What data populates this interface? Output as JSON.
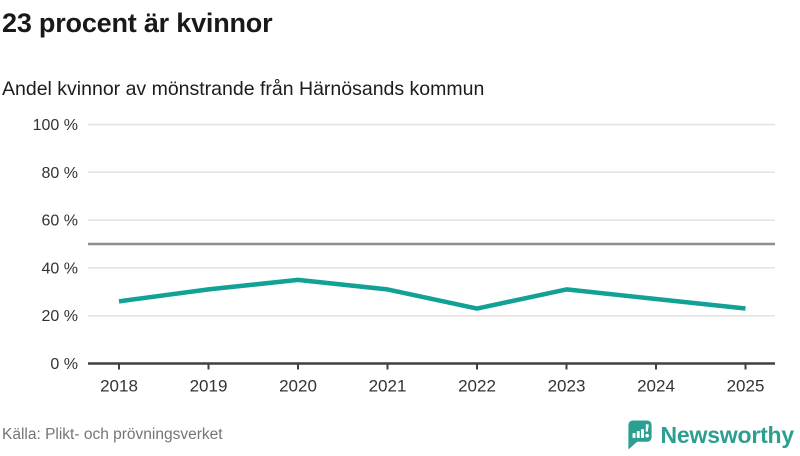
{
  "header": {
    "title": "23 procent är kvinnor",
    "subtitle": "Andel kvinnor av mönstrande från Härnösands kommun"
  },
  "chart_data": {
    "type": "line",
    "title": "23 procent är kvinnor",
    "subtitle": "Andel kvinnor av mönstrande från Härnösands kommun",
    "categories": [
      "2018",
      "2019",
      "2020",
      "2021",
      "2022",
      "2023",
      "2024",
      "2025"
    ],
    "series": [
      {
        "name": "Andel kvinnor av mönstrande",
        "values": [
          26,
          31,
          35,
          31,
          23,
          31,
          27,
          23
        ]
      }
    ],
    "unit": "%",
    "ylim": [
      0,
      100
    ],
    "yticks": [
      0,
      20,
      40,
      60,
      80,
      100
    ],
    "ytick_suffix": " %",
    "reference_line": {
      "value": 50
    },
    "grid": true,
    "legend": "none",
    "colors": {
      "line": "#12a195",
      "grid": "#e3e3e3",
      "reference": "#8e8e96",
      "axis": "#404040",
      "labels": "#333333"
    }
  },
  "footer": {
    "source": "Källa: Plikt- och prövningsverket",
    "logo_text": "Newsworthy",
    "logo_color": "#2d9f90"
  }
}
